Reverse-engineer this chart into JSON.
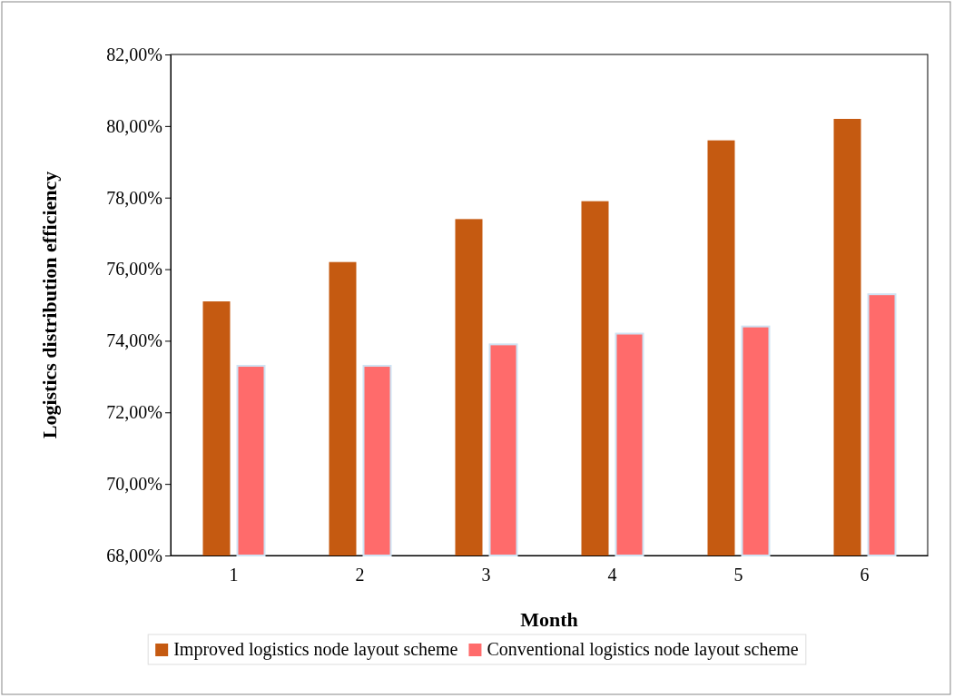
{
  "chart_data": {
    "type": "bar",
    "xlabel": "Month",
    "ylabel": "Logistics distribution efficiency",
    "categories": [
      "1",
      "2",
      "3",
      "4",
      "5",
      "6"
    ],
    "series": [
      {
        "name": "Improved logistics node layout scheme",
        "color": "#c55a11",
        "values": [
          75.1,
          76.2,
          77.4,
          77.9,
          79.6,
          80.2
        ]
      },
      {
        "name": "Conventional logistics node layout scheme",
        "color": "#ff6b6b",
        "values": [
          73.3,
          73.3,
          73.9,
          74.2,
          74.4,
          75.3
        ]
      }
    ],
    "ylim": [
      68,
      82
    ],
    "yticks": [
      {
        "value": 68,
        "label": "68,00%"
      },
      {
        "value": 70,
        "label": "70,00%"
      },
      {
        "value": 72,
        "label": "72,00%"
      },
      {
        "value": 74,
        "label": "74,00%"
      },
      {
        "value": 76,
        "label": "76,00%"
      },
      {
        "value": 78,
        "label": "78,00%"
      },
      {
        "value": 80,
        "label": "80,00%"
      },
      {
        "value": 82,
        "label": "82,00%"
      }
    ],
    "grid": false,
    "legend": "bottom"
  }
}
